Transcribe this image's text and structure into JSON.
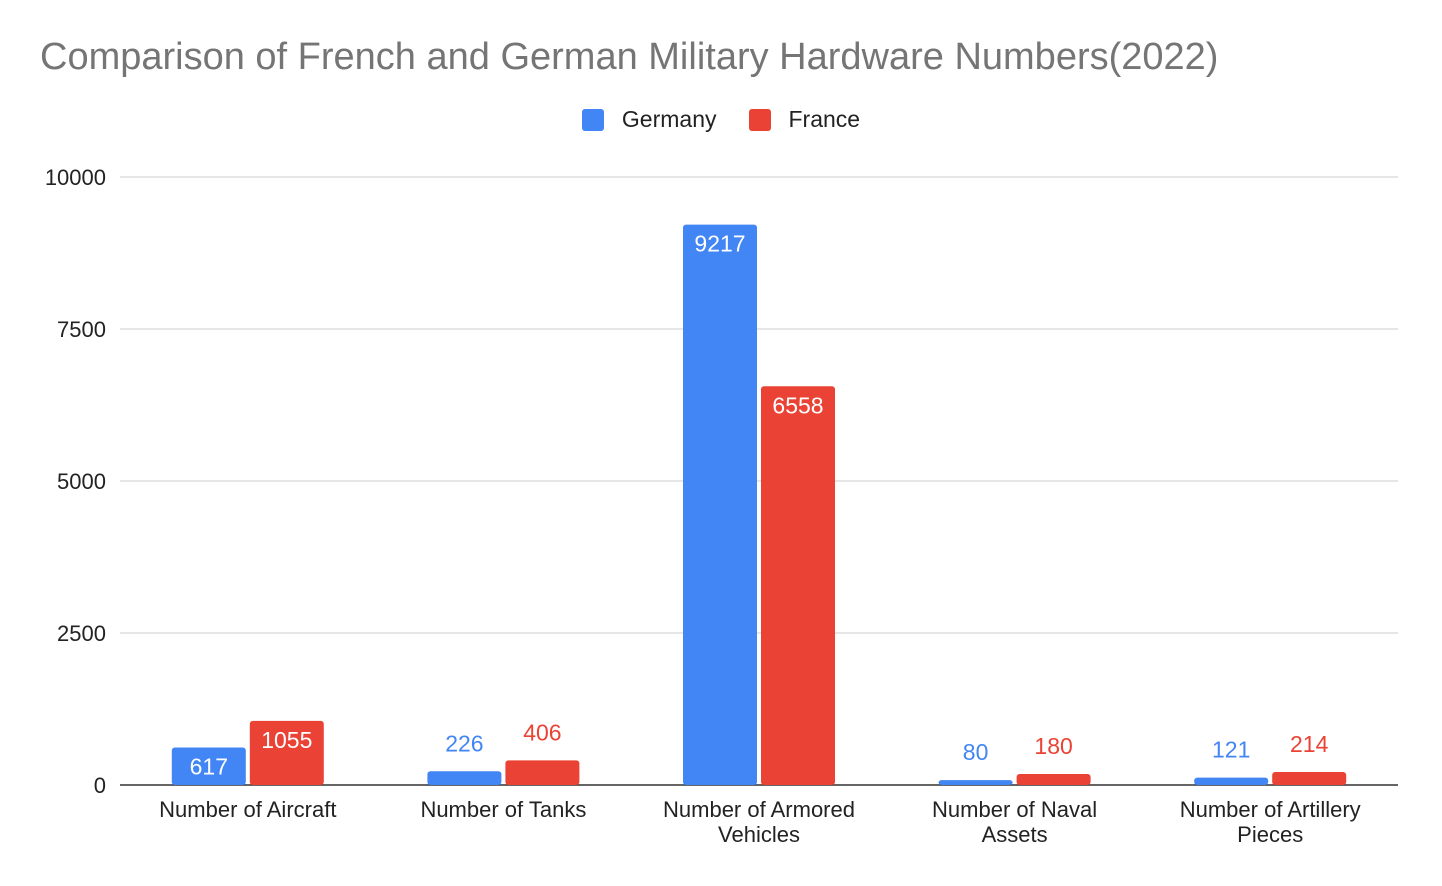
{
  "chart_data": {
    "type": "bar",
    "title": "Comparison of French and German Military Hardware Numbers(2022)",
    "xlabel": "",
    "ylabel": "",
    "categories": [
      [
        "Number of Aircraft"
      ],
      [
        "Number of Tanks"
      ],
      [
        "Number of Armored",
        "Vehicles"
      ],
      [
        "Number of Naval",
        "Assets"
      ],
      [
        "Number of Artillery",
        "Pieces"
      ]
    ],
    "series": [
      {
        "name": "Germany",
        "color": "#4285f4",
        "values": [
          617,
          226,
          9217,
          80,
          121
        ]
      },
      {
        "name": "France",
        "color": "#ea4335",
        "values": [
          1055,
          406,
          6558,
          180,
          214
        ]
      }
    ],
    "ylim": [
      0,
      10000
    ],
    "yticks": [
      0,
      2500,
      5000,
      7500,
      10000
    ],
    "grid": true,
    "legend_position": "top-center"
  }
}
